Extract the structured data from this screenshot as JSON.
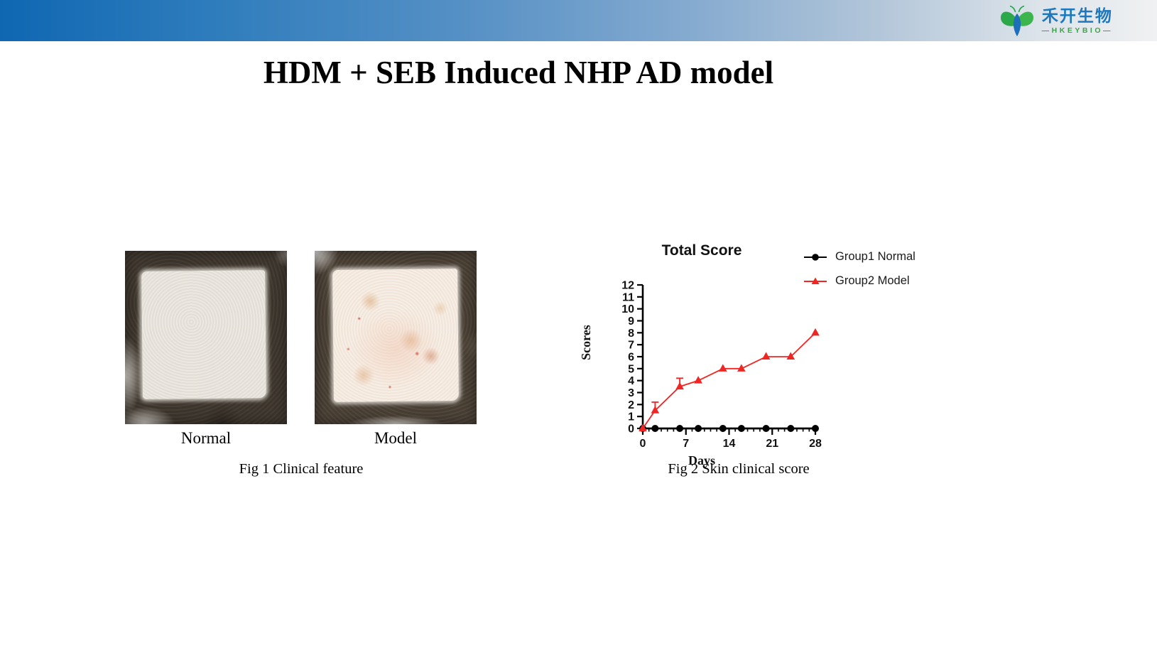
{
  "header": {
    "logo": {
      "brand_cn": "禾开生物",
      "brand_en": "—HKEYBIO—",
      "brand_blue": "#1e78bd",
      "brand_green": "#3fa24d",
      "icon": "butterfly-leaf-icon"
    },
    "bar_color_left": "#0f67b2",
    "bar_color_right": "#f0f1f2"
  },
  "title": "HDM + SEB Induced NHP AD model",
  "fig1": {
    "left_label": "Normal",
    "right_label": "Model",
    "caption": "Fig 1 Clinical feature"
  },
  "fig2": {
    "caption": "Fig 2 Skin clinical score"
  },
  "chart_data": {
    "type": "line",
    "title": "Total Score",
    "xlabel": "Days",
    "ylabel": "Scores",
    "xlim": [
      0,
      28
    ],
    "ylim": [
      0,
      12
    ],
    "x_major_ticks": [
      0,
      7,
      14,
      21,
      28
    ],
    "x_minor_tick_step": 1,
    "y_tick_step": 1,
    "grid": false,
    "legend_position": "right",
    "x": [
      0,
      2,
      6,
      9,
      13,
      16,
      20,
      24,
      28
    ],
    "series": [
      {
        "name": "Group1 Normal",
        "color": "#000000",
        "marker": "circle",
        "values": [
          0,
          0,
          0,
          0,
          0,
          0,
          0,
          0,
          0
        ],
        "errors": [
          0,
          0,
          0,
          0,
          0,
          0,
          0,
          0,
          0
        ]
      },
      {
        "name": "Group2 Model",
        "color": "#ee2724",
        "marker": "triangle",
        "values": [
          0,
          1.5,
          3.5,
          4,
          5,
          5,
          6,
          6,
          8
        ],
        "errors": [
          0,
          0.7,
          0.7,
          0,
          0,
          0,
          0,
          0,
          0
        ]
      }
    ]
  }
}
